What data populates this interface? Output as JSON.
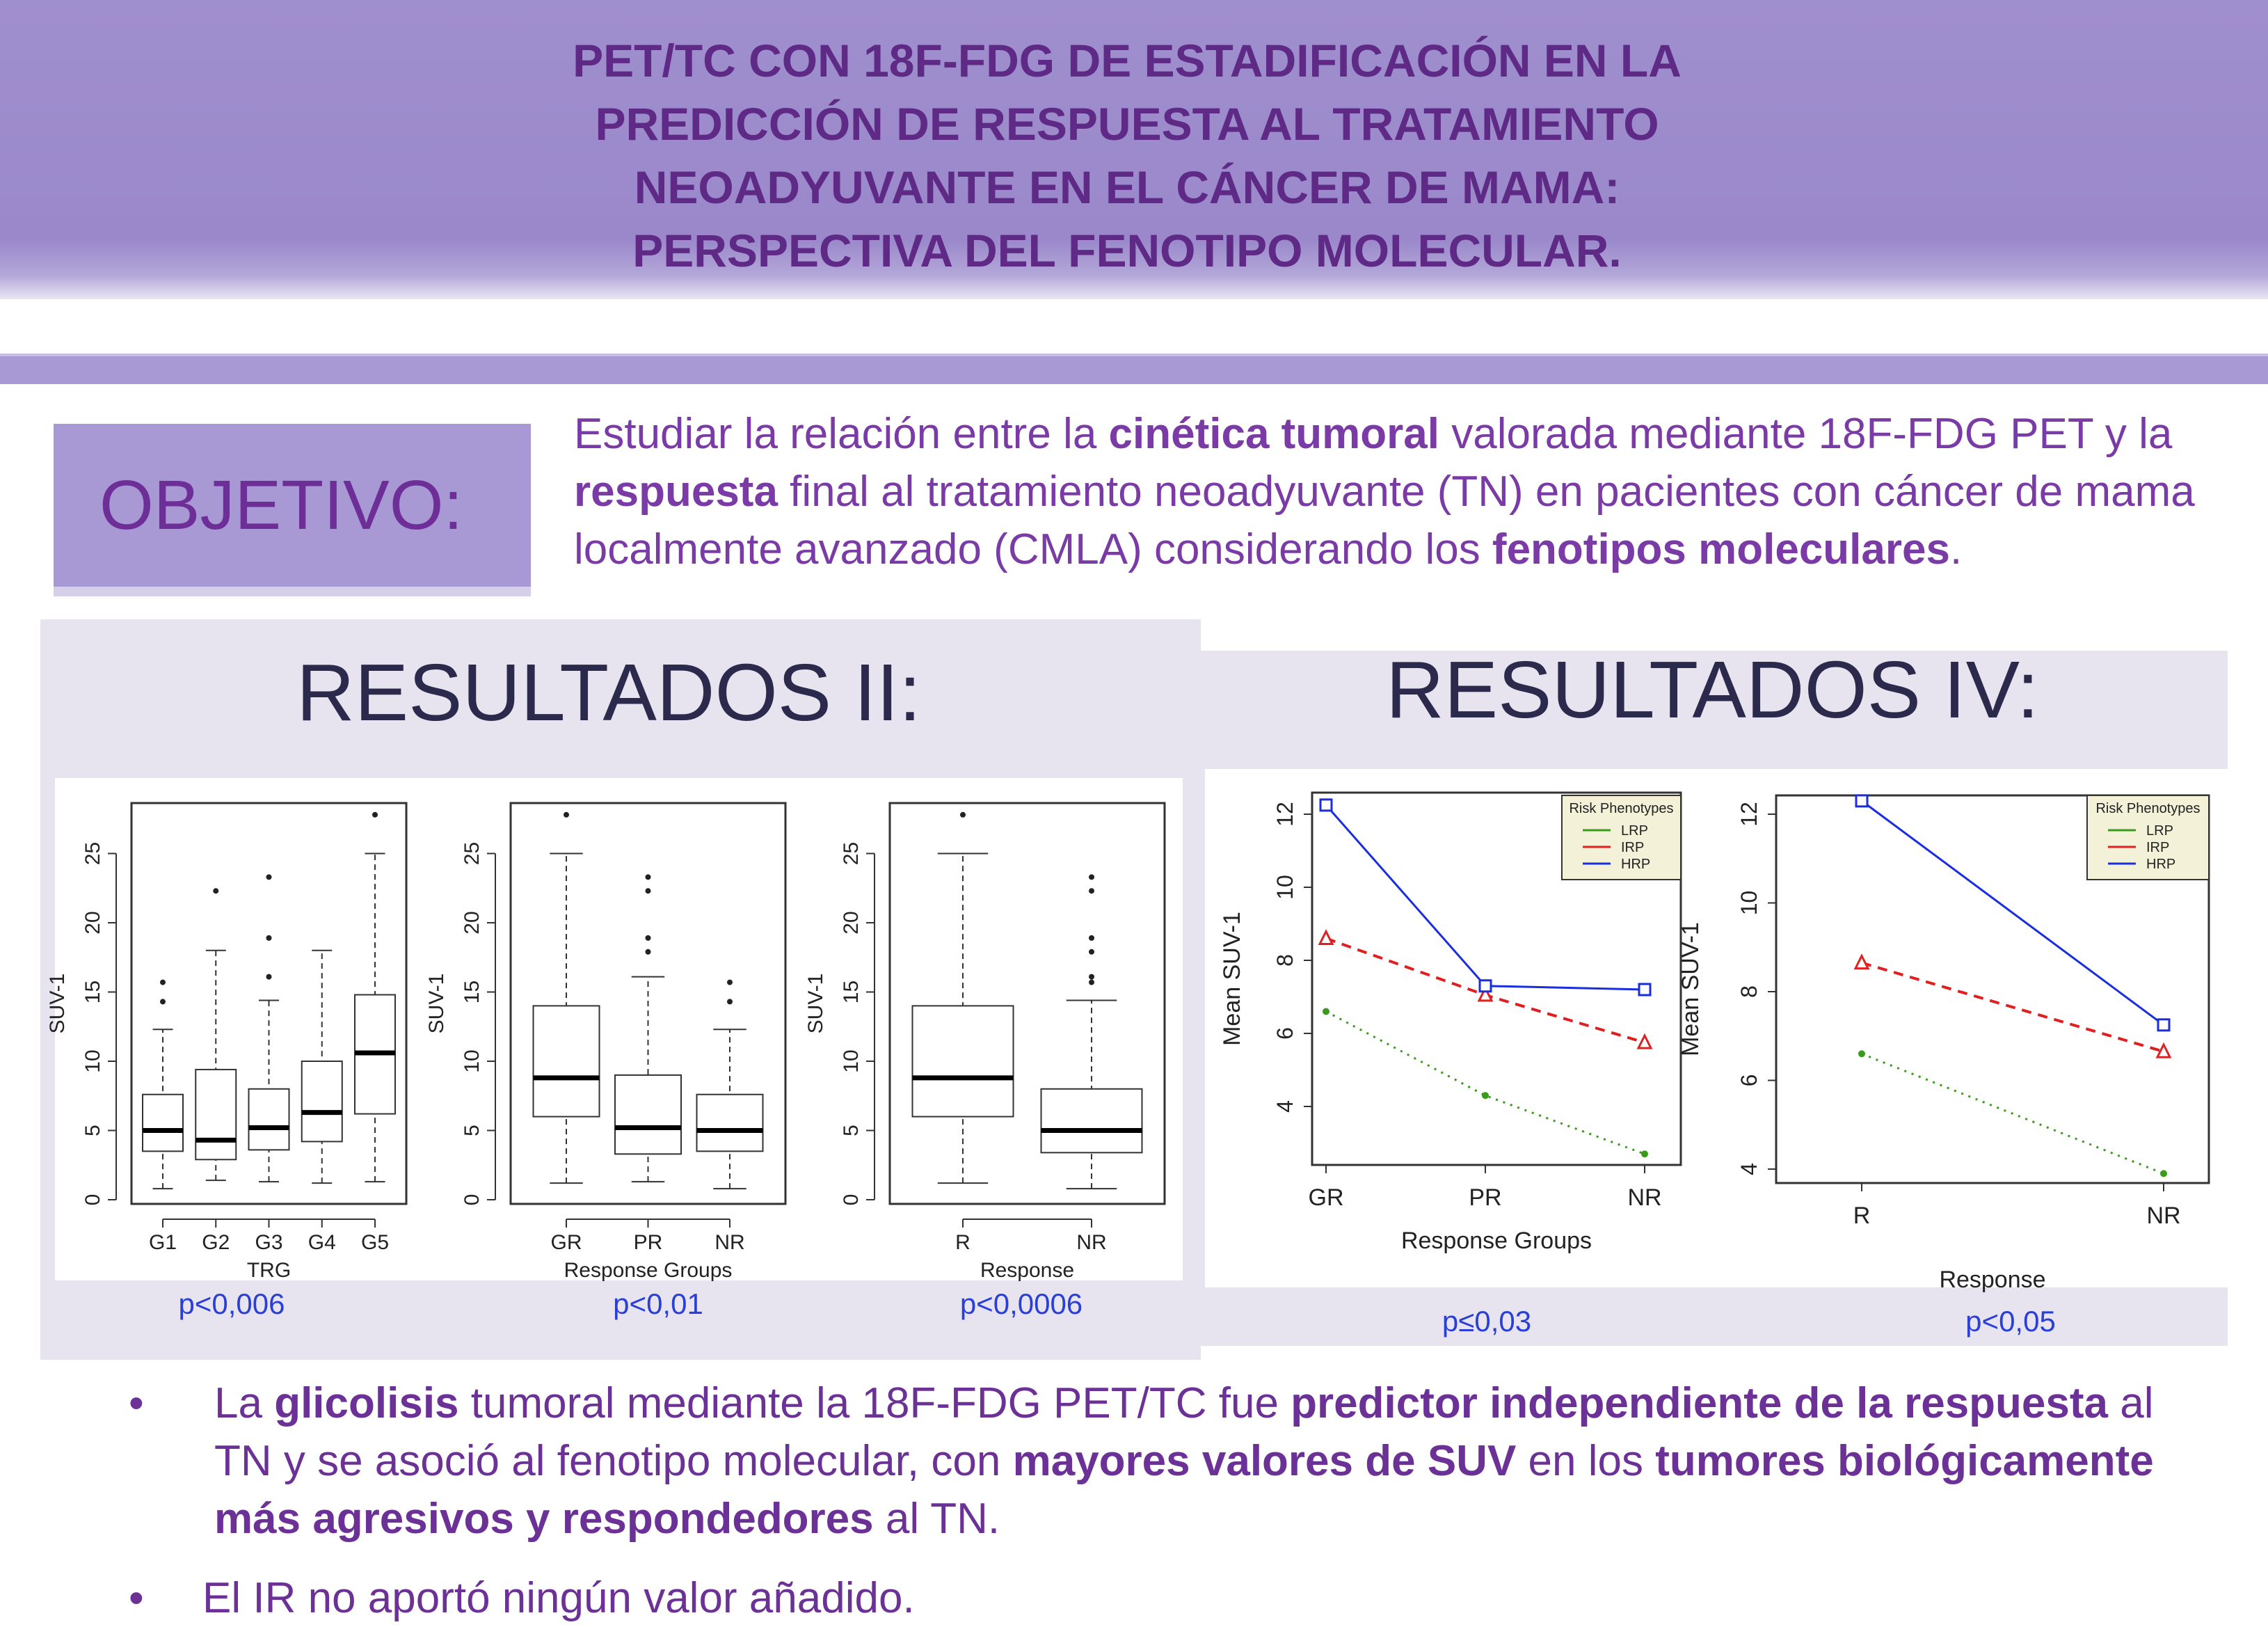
{
  "header": {
    "title_lines": [
      "PET/TC CON 18F-FDG DE ESTADIFICACIÓN EN LA",
      "PREDICCIÓN DE RESPUESTA AL TRATAMIENTO",
      "NEOADYUVANTE EN EL CÁNCER DE MAMA:",
      "PERSPECTIVA DEL FENOTIPO MOLECULAR."
    ]
  },
  "objective": {
    "label": "OBJETIVO:",
    "segments": [
      {
        "t": "Estudiar la relación entre la ",
        "b": false
      },
      {
        "t": "cinética tumoral",
        "b": true
      },
      {
        "t": " valorada mediante 18F-FDG PET y la ",
        "b": false
      },
      {
        "t": "respuesta",
        "b": true
      },
      {
        "t": " final al tratamiento neoadyuvante (TN) en pacientes con cáncer de mama localmente avanzado (CMLA) considerando los ",
        "b": false
      },
      {
        "t": "fenotipos moleculares",
        "b": true
      },
      {
        "t": ".",
        "b": false
      }
    ]
  },
  "results2": {
    "title": "RESULTADOS II:",
    "pvalues": [
      "p<0,006",
      "p<0,01",
      "p<0,0006"
    ]
  },
  "results4": {
    "title": "RESULTADOS IV:",
    "pvalues": [
      "p≤0,03",
      "p<0,05"
    ]
  },
  "bullets": [
    {
      "segments": [
        {
          "t": "La ",
          "b": false
        },
        {
          "t": "glicolisis",
          "b": true
        },
        {
          "t": " tumoral mediante la 18F-FDG PET/TC fue ",
          "b": false
        },
        {
          "t": "predictor independiente de la respuesta",
          "b": true
        },
        {
          "t": " al TN y se asoció al fenotipo molecular, con ",
          "b": false
        },
        {
          "t": "mayores valores de SUV",
          "b": true
        },
        {
          "t": " en los ",
          "b": false
        },
        {
          "t": "tumores biológicamente más agresivos y respondedores",
          "b": true
        },
        {
          "t": " al TN.",
          "b": false
        }
      ]
    },
    {
      "segments": [
        {
          "t": "El IR no aportó ningún valor añadido.",
          "b": false
        }
      ]
    }
  ],
  "bullet_symbol": "•",
  "chart_data": [
    {
      "type": "box",
      "ylabel": "SUV-1",
      "xlabel": "TRG",
      "ylim": [
        0,
        28.5
      ],
      "yticks": [
        0,
        5,
        10,
        15,
        20,
        25
      ],
      "categories": [
        "G1",
        "G2",
        "G3",
        "G4",
        "G5"
      ],
      "boxes": [
        {
          "lo": 0.8,
          "q1": 3.5,
          "med": 5,
          "q3": 7.6,
          "hi": 12.3,
          "out": [
            14.3,
            15.7
          ]
        },
        {
          "lo": 1.4,
          "q1": 2.9,
          "med": 4.3,
          "q3": 9.4,
          "hi": 18,
          "out": [
            22.3
          ]
        },
        {
          "lo": 1.3,
          "q1": 3.6,
          "med": 5.2,
          "q3": 8,
          "hi": 14.4,
          "out": [
            16.1,
            18.9,
            23.3
          ]
        },
        {
          "lo": 1.2,
          "q1": 4.2,
          "med": 6.3,
          "q3": 10,
          "hi": 18,
          "out": []
        },
        {
          "lo": 1.3,
          "q1": 6.2,
          "med": 10.6,
          "q3": 14.8,
          "hi": 25,
          "out": [
            27.8
          ]
        }
      ]
    },
    {
      "type": "box",
      "ylabel": "SUV-1",
      "xlabel": "Response Groups",
      "ylim": [
        0,
        28.5
      ],
      "yticks": [
        0,
        5,
        10,
        15,
        20,
        25
      ],
      "categories": [
        "GR",
        "PR",
        "NR"
      ],
      "boxes": [
        {
          "lo": 1.2,
          "q1": 6,
          "med": 8.8,
          "q3": 14,
          "hi": 25,
          "out": [
            27.8
          ]
        },
        {
          "lo": 1.3,
          "q1": 3.3,
          "med": 5.2,
          "q3": 9,
          "hi": 16.1,
          "out": [
            17.9,
            18.9,
            22.3,
            23.3
          ]
        },
        {
          "lo": 0.8,
          "q1": 3.5,
          "med": 5,
          "q3": 7.6,
          "hi": 12.3,
          "out": [
            14.3,
            15.7
          ]
        }
      ]
    },
    {
      "type": "box",
      "ylabel": "SUV-1",
      "xlabel": "Response",
      "ylim": [
        0,
        28.5
      ],
      "yticks": [
        0,
        5,
        10,
        15,
        20,
        25
      ],
      "categories": [
        "R",
        "NR"
      ],
      "boxes": [
        {
          "lo": 1.2,
          "q1": 6,
          "med": 8.8,
          "q3": 14,
          "hi": 25,
          "out": [
            27.8
          ]
        },
        {
          "lo": 0.8,
          "q1": 3.4,
          "med": 5,
          "q3": 8,
          "hi": 14.4,
          "out": [
            15.7,
            16.1,
            17.9,
            18.9,
            22.3,
            23.3
          ]
        }
      ]
    },
    {
      "type": "line",
      "ylabel": "Mean SUV-1",
      "xlabel": "Response Groups",
      "ylim": [
        2.4,
        12.6
      ],
      "yticks": [
        4,
        6,
        8,
        10,
        12
      ],
      "categories": [
        "GR",
        "PR",
        "NR"
      ],
      "legend_title": "Risk Phenotypes",
      "legend_position": "top-right",
      "series": [
        {
          "name": "LRP",
          "color": "#3a9a1a",
          "values": [
            6.6,
            4.3,
            2.7
          ]
        },
        {
          "name": "IRP",
          "color": "#e02020",
          "values": [
            8.6,
            7.05,
            5.75
          ]
        },
        {
          "name": "HRP",
          "color": "#1a2ee0",
          "values": [
            12.25,
            7.3,
            7.2
          ]
        }
      ]
    },
    {
      "type": "line",
      "ylabel": "Mean SUV-1",
      "xlabel": "Response",
      "ylim": [
        3.6,
        12.6
      ],
      "yticks": [
        4,
        6,
        8,
        10,
        12
      ],
      "categories": [
        "R",
        "NR"
      ],
      "legend_title": "Risk Phenotypes",
      "legend_position": "top-right",
      "series": [
        {
          "name": "LRP",
          "color": "#3a9a1a",
          "values": [
            6.6,
            3.9
          ]
        },
        {
          "name": "IRP",
          "color": "#e02020",
          "values": [
            8.65,
            6.65
          ]
        },
        {
          "name": "HRP",
          "color": "#1a2ee0",
          "values": [
            12.3,
            7.25
          ]
        }
      ]
    }
  ]
}
